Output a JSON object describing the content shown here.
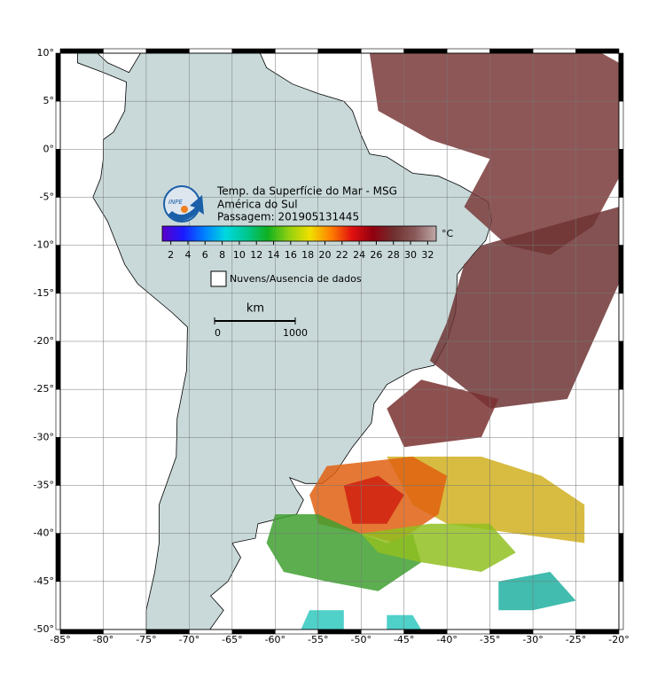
{
  "map": {
    "title": "Temp. da Superfície do Mar - MSG",
    "region": "América do Sul",
    "pass": "Passagem: 201905131445",
    "xlim": [
      -85,
      -20
    ],
    "ylim": [
      -50,
      10
    ],
    "xticks": [
      {
        "value": -85,
        "label": "-85°"
      },
      {
        "value": -80,
        "label": "-80°"
      },
      {
        "value": -75,
        "label": "-75°"
      },
      {
        "value": -70,
        "label": "-70°"
      },
      {
        "value": -65,
        "label": "-65°"
      },
      {
        "value": -60,
        "label": "-60°"
      },
      {
        "value": -55,
        "label": "-55°"
      },
      {
        "value": -50,
        "label": "-50°"
      },
      {
        "value": -45,
        "label": "-45°"
      },
      {
        "value": -40,
        "label": "-40°"
      },
      {
        "value": -35,
        "label": "-35°"
      },
      {
        "value": -30,
        "label": "-30°"
      },
      {
        "value": -25,
        "label": "-25°"
      },
      {
        "value": -20,
        "label": "-20°"
      }
    ],
    "yticks": [
      {
        "value": 10,
        "label": "10°"
      },
      {
        "value": 5,
        "label": "5°"
      },
      {
        "value": 0,
        "label": "0°"
      },
      {
        "value": -5,
        "label": "-5°"
      },
      {
        "value": -10,
        "label": "-10°"
      },
      {
        "value": -15,
        "label": "-15°"
      },
      {
        "value": -20,
        "label": "-20°"
      },
      {
        "value": -25,
        "label": "-25°"
      },
      {
        "value": -30,
        "label": "-30°"
      },
      {
        "value": -35,
        "label": "-35°"
      },
      {
        "value": -40,
        "label": "-40°"
      },
      {
        "value": -45,
        "label": "-45°"
      },
      {
        "value": -50,
        "label": "-50°"
      }
    ],
    "colorbar": {
      "clim": [
        1,
        33
      ],
      "ticks": [
        2,
        4,
        6,
        8,
        10,
        12,
        14,
        16,
        18,
        20,
        22,
        24,
        26,
        28,
        30,
        32
      ],
      "unit": "°C",
      "colors": [
        "#5a00c8",
        "#1a1aff",
        "#0080ff",
        "#00d8e0",
        "#00c890",
        "#10b020",
        "#90d010",
        "#f0e000",
        "#ff8000",
        "#e01010",
        "#900010",
        "#703030",
        "#8a5a5a",
        "#c0a8a8"
      ]
    },
    "legend": "Nuvens/Ausencia de dados",
    "scale": {
      "unit": "km",
      "ticks": [
        0,
        1000
      ]
    }
  }
}
